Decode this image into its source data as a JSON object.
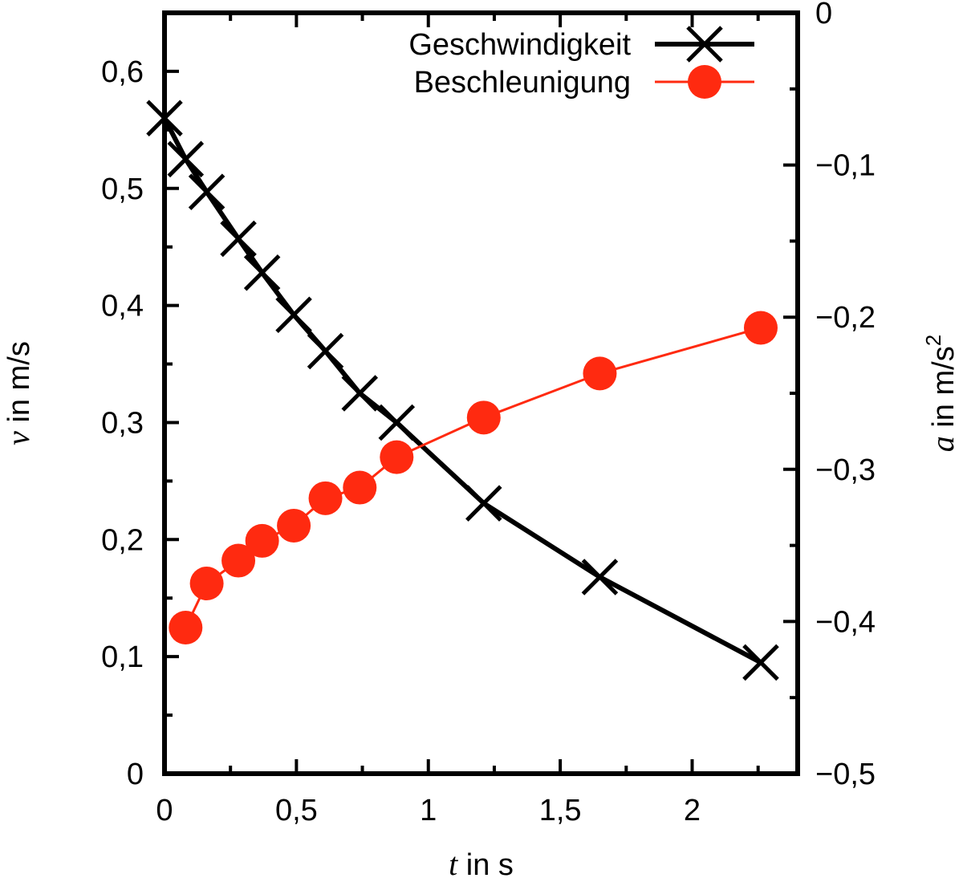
{
  "chart_data": {
    "type": "line",
    "x": [
      0.0,
      0.08,
      0.16,
      0.28,
      0.37,
      0.49,
      0.61,
      0.74,
      0.88,
      1.21,
      1.65,
      2.26
    ],
    "xlabel": {
      "var": "t",
      "text": " in s"
    },
    "xlim": [
      0,
      2.4
    ],
    "xticks": [
      0,
      0.5,
      1,
      1.5,
      2
    ],
    "xtick_labels": [
      "0",
      "0,5",
      "1",
      "1,5",
      "2"
    ],
    "y_left": {
      "label": {
        "var": "v",
        "text": " in m/s"
      },
      "lim": [
        0,
        0.65
      ],
      "ticks": [
        0,
        0.1,
        0.2,
        0.3,
        0.4,
        0.5,
        0.6
      ],
      "tick_labels": [
        "0",
        "0,1",
        "0,2",
        "0,3",
        "0,4",
        "0,5",
        "0,6"
      ]
    },
    "y_right": {
      "label": {
        "var": "a",
        "text": " in m/s",
        "sup": "2"
      },
      "lim": [
        -0.5,
        0
      ],
      "ticks": [
        -0.5,
        -0.4,
        -0.3,
        -0.2,
        -0.1,
        0
      ],
      "tick_labels": [
        "−0,5",
        "−0,4",
        "−0,3",
        "−0,2",
        "−0,1",
        "0"
      ]
    },
    "series": [
      {
        "name": "Geschwindigkeit",
        "axis": "left",
        "marker": "x",
        "color": "#000000",
        "x": [
          0.0,
          0.08,
          0.16,
          0.28,
          0.37,
          0.49,
          0.61,
          0.74,
          0.88,
          1.21,
          1.65,
          2.26
        ],
        "values": [
          0.56,
          0.525,
          0.497,
          0.457,
          0.428,
          0.392,
          0.361,
          0.325,
          0.3,
          0.231,
          0.168,
          0.095
        ]
      },
      {
        "name": "Beschleunigung",
        "axis": "right",
        "marker": "circle",
        "color": "#ff2a10",
        "x": [
          0.08,
          0.16,
          0.28,
          0.37,
          0.49,
          0.61,
          0.74,
          0.88,
          1.21,
          1.65,
          2.26
        ],
        "values": [
          -0.404,
          -0.375,
          -0.36,
          -0.347,
          -0.337,
          -0.319,
          -0.312,
          -0.292,
          -0.266,
          -0.237,
          -0.207
        ]
      }
    ],
    "legend_position": "top-right",
    "grid": false
  }
}
